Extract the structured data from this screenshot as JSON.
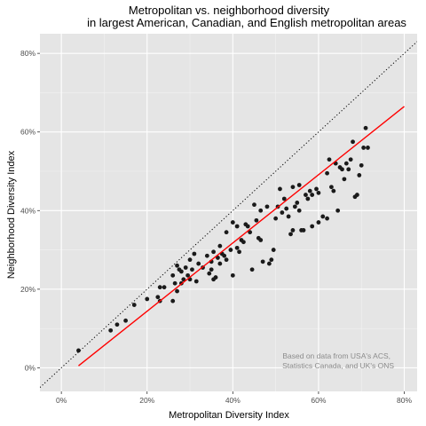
{
  "chart_data": {
    "type": "scatter",
    "title": "Metropolitan vs. neighborhood diversity",
    "subtitle": "in largest American, Canadian, and English metropolitan areas",
    "xlabel": "Metropolitan Diversity Index",
    "ylabel": "Neighborhood Diversity Index",
    "xlim": [
      -0.05,
      0.83
    ],
    "ylim": [
      -0.06,
      0.85
    ],
    "x_ticks": [
      0,
      0.2,
      0.4,
      0.6,
      0.8
    ],
    "x_tick_labels": [
      "0%",
      "20%",
      "40%",
      "60%",
      "80%"
    ],
    "y_ticks": [
      0,
      0.2,
      0.4,
      0.6,
      0.8
    ],
    "y_tick_labels": [
      "0%",
      "20%",
      "40%",
      "60%",
      "80%"
    ],
    "grid": true,
    "background": "#e5e5e5",
    "point_color": "#1a1a1a",
    "fit_line": {
      "color": "#ff0000",
      "x": [
        0.04,
        0.8
      ],
      "y": [
        0.005,
        0.665
      ]
    },
    "identity_line": {
      "style": "dotted",
      "color": "#000000",
      "x": [
        -0.05,
        0.83
      ],
      "y": [
        -0.05,
        0.83
      ]
    },
    "annotation": [
      "Based on data from USA's ACS,",
      "Statistics Canada, and UK's ONS"
    ],
    "points": [
      [
        0.04,
        0.044
      ],
      [
        0.115,
        0.095
      ],
      [
        0.13,
        0.11
      ],
      [
        0.15,
        0.12
      ],
      [
        0.17,
        0.16
      ],
      [
        0.2,
        0.175
      ],
      [
        0.225,
        0.18
      ],
      [
        0.23,
        0.17
      ],
      [
        0.23,
        0.205
      ],
      [
        0.24,
        0.205
      ],
      [
        0.26,
        0.17
      ],
      [
        0.26,
        0.235
      ],
      [
        0.265,
        0.215
      ],
      [
        0.27,
        0.195
      ],
      [
        0.27,
        0.26
      ],
      [
        0.275,
        0.25
      ],
      [
        0.28,
        0.215
      ],
      [
        0.28,
        0.245
      ],
      [
        0.285,
        0.225
      ],
      [
        0.29,
        0.255
      ],
      [
        0.295,
        0.235
      ],
      [
        0.3,
        0.275
      ],
      [
        0.3,
        0.225
      ],
      [
        0.305,
        0.25
      ],
      [
        0.31,
        0.29
      ],
      [
        0.315,
        0.22
      ],
      [
        0.32,
        0.265
      ],
      [
        0.33,
        0.255
      ],
      [
        0.34,
        0.285
      ],
      [
        0.345,
        0.24
      ],
      [
        0.35,
        0.27
      ],
      [
        0.35,
        0.25
      ],
      [
        0.355,
        0.225
      ],
      [
        0.355,
        0.295
      ],
      [
        0.36,
        0.23
      ],
      [
        0.365,
        0.28
      ],
      [
        0.37,
        0.265
      ],
      [
        0.37,
        0.31
      ],
      [
        0.375,
        0.29
      ],
      [
        0.38,
        0.285
      ],
      [
        0.385,
        0.275
      ],
      [
        0.385,
        0.345
      ],
      [
        0.395,
        0.3
      ],
      [
        0.4,
        0.37
      ],
      [
        0.4,
        0.235
      ],
      [
        0.41,
        0.36
      ],
      [
        0.41,
        0.305
      ],
      [
        0.415,
        0.295
      ],
      [
        0.42,
        0.325
      ],
      [
        0.425,
        0.32
      ],
      [
        0.43,
        0.365
      ],
      [
        0.435,
        0.36
      ],
      [
        0.44,
        0.345
      ],
      [
        0.445,
        0.25
      ],
      [
        0.45,
        0.415
      ],
      [
        0.455,
        0.375
      ],
      [
        0.46,
        0.33
      ],
      [
        0.465,
        0.325
      ],
      [
        0.465,
        0.4
      ],
      [
        0.47,
        0.27
      ],
      [
        0.48,
        0.41
      ],
      [
        0.485,
        0.265
      ],
      [
        0.49,
        0.275
      ],
      [
        0.495,
        0.3
      ],
      [
        0.5,
        0.38
      ],
      [
        0.505,
        0.41
      ],
      [
        0.51,
        0.455
      ],
      [
        0.515,
        0.395
      ],
      [
        0.52,
        0.43
      ],
      [
        0.525,
        0.405
      ],
      [
        0.53,
        0.385
      ],
      [
        0.535,
        0.34
      ],
      [
        0.54,
        0.35
      ],
      [
        0.54,
        0.46
      ],
      [
        0.545,
        0.41
      ],
      [
        0.55,
        0.42
      ],
      [
        0.555,
        0.4
      ],
      [
        0.555,
        0.465
      ],
      [
        0.56,
        0.35
      ],
      [
        0.565,
        0.35
      ],
      [
        0.57,
        0.44
      ],
      [
        0.575,
        0.43
      ],
      [
        0.58,
        0.45
      ],
      [
        0.585,
        0.44
      ],
      [
        0.595,
        0.455
      ],
      [
        0.6,
        0.37
      ],
      [
        0.61,
        0.385
      ],
      [
        0.62,
        0.495
      ],
      [
        0.625,
        0.53
      ],
      [
        0.63,
        0.46
      ],
      [
        0.635,
        0.45
      ],
      [
        0.64,
        0.52
      ],
      [
        0.645,
        0.4
      ],
      [
        0.65,
        0.51
      ],
      [
        0.655,
        0.505
      ],
      [
        0.66,
        0.48
      ],
      [
        0.665,
        0.52
      ],
      [
        0.67,
        0.505
      ],
      [
        0.675,
        0.53
      ],
      [
        0.68,
        0.575
      ],
      [
        0.685,
        0.435
      ],
      [
        0.69,
        0.44
      ],
      [
        0.695,
        0.49
      ],
      [
        0.7,
        0.515
      ],
      [
        0.705,
        0.56
      ],
      [
        0.71,
        0.61
      ],
      [
        0.715,
        0.56
      ],
      [
        0.62,
        0.38
      ],
      [
        0.6,
        0.445
      ],
      [
        0.585,
        0.36
      ]
    ]
  }
}
